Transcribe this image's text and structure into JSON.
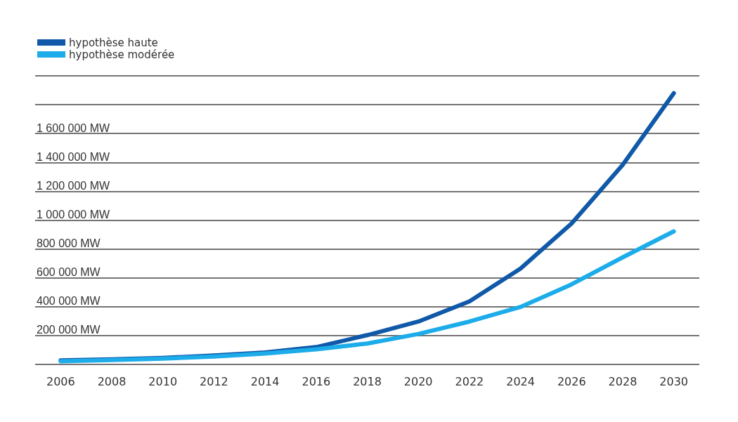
{
  "chart_data": {
    "type": "line",
    "categories": [
      "2006",
      "2008",
      "2010",
      "2012",
      "2014",
      "2016",
      "2018",
      "2020",
      "2022",
      "2024",
      "2026",
      "2028",
      "2030"
    ],
    "series": [
      {
        "name": "hypothèse haute",
        "color": "#1059a8",
        "values": [
          28000,
          35000,
          45000,
          62000,
          83000,
          120000,
          203000,
          297000,
          437000,
          664000,
          977000,
          1383000,
          1880000
        ]
      },
      {
        "name": "hypothèse modérée",
        "color": "#1cacea",
        "values": [
          22000,
          30000,
          40000,
          55000,
          75000,
          105000,
          145000,
          211000,
          297000,
          398000,
          555000,
          742000,
          922000
        ]
      }
    ],
    "ylim": [
      0,
      2000000
    ],
    "yticks": [
      {
        "value": 0,
        "label": null
      },
      {
        "value": 200000,
        "label": "200 000 MW"
      },
      {
        "value": 400000,
        "label": "400 000 MW"
      },
      {
        "value": 600000,
        "label": "600 000 MW"
      },
      {
        "value": 800000,
        "label": "800 000 MW"
      },
      {
        "value": 1000000,
        "label": "1 000 000 MW"
      },
      {
        "value": 1200000,
        "label": "1 200 000 MW"
      },
      {
        "value": 1400000,
        "label": "1 400 000 MW"
      },
      {
        "value": 1600000,
        "label": "1 600 000 MW"
      },
      {
        "value": 1800000,
        "label": null
      },
      {
        "value": 2000000,
        "label": null
      }
    ],
    "grid": "y",
    "legend": "top left",
    "marker": "none",
    "line_style": "solid"
  }
}
